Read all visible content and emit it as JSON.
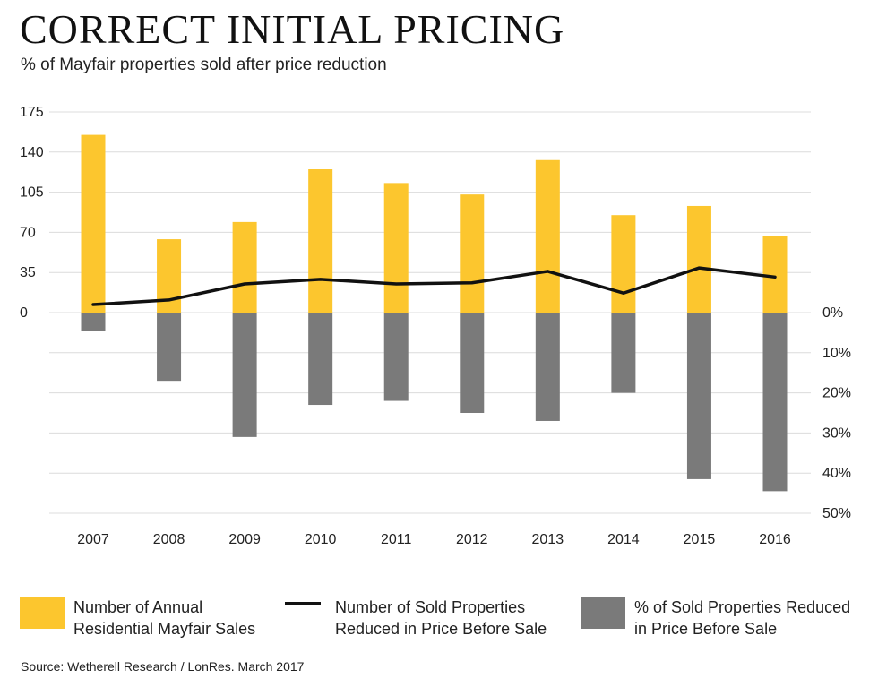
{
  "title": "CORRECT INITIAL PRICING",
  "subtitle": "% of Mayfair properties sold after price reduction",
  "source": "Source: Wetherell Research / LonRes. March 2017",
  "legend": [
    {
      "label": "Number of Annual\nResidential Mayfair Sales",
      "color": "#fcc62e",
      "kind": "box"
    },
    {
      "label": "Number of Sold Properties\nReduced in Price Before Sale",
      "color": "#111111",
      "kind": "line"
    },
    {
      "label": "% of Sold Properties Reduced\nin Price Before Sale",
      "color": "#7a7a7a",
      "kind": "box"
    }
  ],
  "chart_data": {
    "type": "bar",
    "categories": [
      "2007",
      "2008",
      "2009",
      "2010",
      "2011",
      "2012",
      "2013",
      "2014",
      "2015",
      "2016"
    ],
    "series": [
      {
        "name": "Number of Annual Residential Mayfair Sales",
        "type": "bar",
        "axis": "left",
        "values": [
          155,
          64,
          79,
          125,
          113,
          103,
          133,
          85,
          93,
          67
        ],
        "color": "#fcc62e"
      },
      {
        "name": "Number of Sold Properties Reduced in Price Before Sale",
        "type": "line",
        "axis": "left",
        "values": [
          7,
          11,
          25,
          29,
          25,
          26,
          36,
          17,
          39,
          31
        ],
        "color": "#111111"
      },
      {
        "name": "% of Sold Properties Reduced in Price Before Sale",
        "type": "bar",
        "axis": "right",
        "values": [
          4.5,
          17,
          31,
          23,
          22,
          25,
          27,
          20,
          41.5,
          44.5
        ],
        "color": "#7a7a7a"
      }
    ],
    "y_left": {
      "ticks": [
        "175",
        "140",
        "105",
        "70",
        "35",
        "0"
      ],
      "ylim": [
        0,
        175
      ]
    },
    "y_right": {
      "ticks": [
        "0%",
        "10%",
        "20%",
        "30%",
        "40%",
        "50%"
      ],
      "ylim": [
        0,
        50
      ]
    },
    "grid": true,
    "legend_position": "bottom"
  }
}
